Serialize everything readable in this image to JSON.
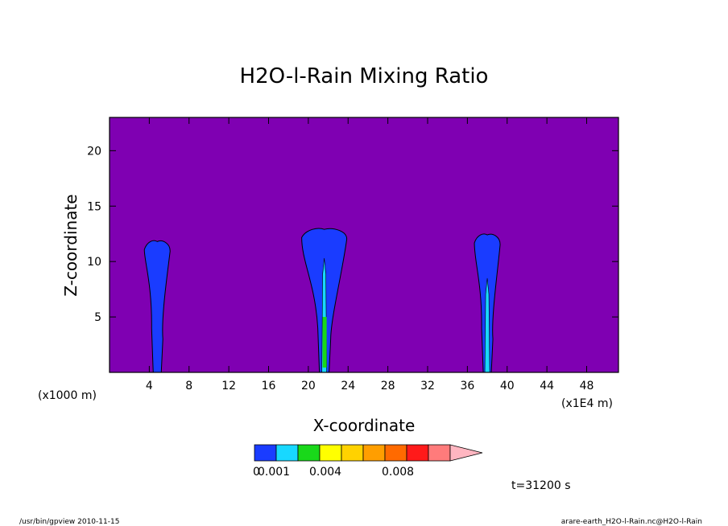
{
  "chart_data": {
    "type": "heatmap",
    "title": "H2O-l-Rain Mixing Ratio",
    "xlabel": "X-coordinate",
    "ylabel": "Z-coordinate",
    "x_unit_left": "(x1000 m)",
    "x_unit_right": "(x1E4 m)",
    "xlim": [
      0,
      51.2
    ],
    "ylim": [
      0,
      23
    ],
    "x_ticks": [
      "4",
      "8",
      "12",
      "16",
      "20",
      "24",
      "28",
      "32",
      "36",
      "40",
      "44",
      "48"
    ],
    "y_ticks": [
      "5",
      "10",
      "15",
      "20"
    ],
    "background_color": "#7f00b2",
    "colorbar": {
      "colors": [
        "#1a3cff",
        "#18d8ff",
        "#19d81a",
        "#ffff00",
        "#ffd200",
        "#ff9e00",
        "#ff6a00",
        "#ff1a1a",
        "#ff7b7b",
        "#ffb6c1"
      ],
      "labels": [
        "0",
        "0.001",
        "0.004",
        "0.008"
      ]
    },
    "plumes": [
      {
        "x_center": 4.8,
        "top": 11.8,
        "core_top": 0
      },
      {
        "x_center": 21.6,
        "top": 12.9,
        "core_top": 10.3
      },
      {
        "x_center": 38.0,
        "top": 12.4,
        "core_top": 8.5
      }
    ],
    "time_label": "t=31200 s",
    "footer_left": "/usr/bin/gpview   2010-11-15",
    "footer_right": "arare-earth_H2O-l-Rain.nc@H2O-l-Rain"
  }
}
